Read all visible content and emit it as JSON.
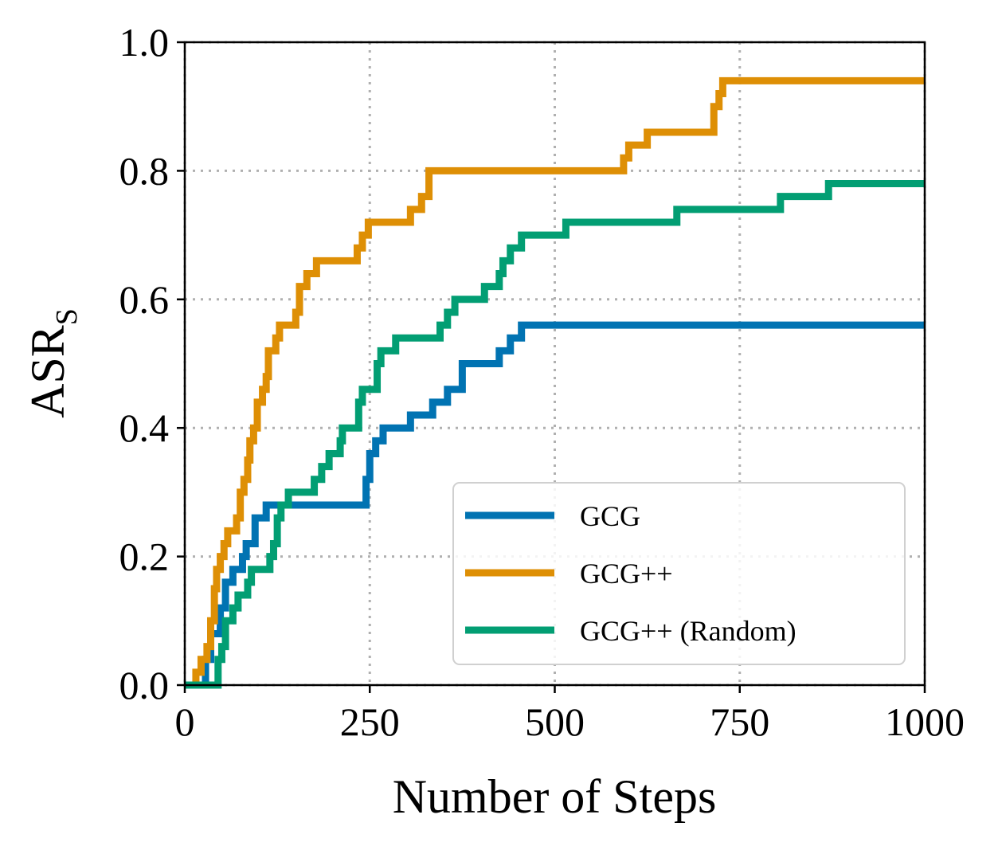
{
  "chart_data": {
    "type": "line",
    "step": true,
    "xlabel": "Number of Steps",
    "ylabel": "ASR",
    "ylabel_subscript": "S",
    "xlim": [
      0,
      1000
    ],
    "ylim": [
      0,
      1
    ],
    "x_ticks": [
      0,
      250,
      500,
      750,
      1000
    ],
    "x_tick_labels": [
      "0",
      "250",
      "500",
      "750",
      "1000"
    ],
    "y_ticks": [
      0,
      0.2,
      0.4,
      0.6,
      0.8,
      1.0
    ],
    "y_tick_labels": [
      "0.0",
      "0.2",
      "0.4",
      "0.6",
      "0.8",
      "1.0"
    ],
    "grid": true,
    "legend_position": "lower-right",
    "series": [
      {
        "name": "GCG",
        "color": "#0173b2",
        "points": [
          [
            0,
            0
          ],
          [
            25,
            0
          ],
          [
            28,
            0.04
          ],
          [
            35,
            0.08
          ],
          [
            48,
            0.12
          ],
          [
            55,
            0.16
          ],
          [
            65,
            0.18
          ],
          [
            78,
            0.2
          ],
          [
            83,
            0.22
          ],
          [
            95,
            0.26
          ],
          [
            110,
            0.28
          ],
          [
            240,
            0.28
          ],
          [
            245,
            0.32
          ],
          [
            250,
            0.36
          ],
          [
            258,
            0.38
          ],
          [
            268,
            0.4
          ],
          [
            305,
            0.42
          ],
          [
            335,
            0.44
          ],
          [
            355,
            0.46
          ],
          [
            375,
            0.5
          ],
          [
            425,
            0.52
          ],
          [
            440,
            0.54
          ],
          [
            455,
            0.56
          ],
          [
            1000,
            0.56
          ]
        ]
      },
      {
        "name": "GCG++",
        "color": "#de8f05",
        "points": [
          [
            0,
            0
          ],
          [
            10,
            0
          ],
          [
            15,
            0.02
          ],
          [
            22,
            0.04
          ],
          [
            30,
            0.06
          ],
          [
            35,
            0.1
          ],
          [
            40,
            0.15
          ],
          [
            43,
            0.18
          ],
          [
            48,
            0.2
          ],
          [
            53,
            0.22
          ],
          [
            58,
            0.24
          ],
          [
            70,
            0.26
          ],
          [
            75,
            0.3
          ],
          [
            80,
            0.32
          ],
          [
            85,
            0.35
          ],
          [
            88,
            0.38
          ],
          [
            93,
            0.4
          ],
          [
            98,
            0.44
          ],
          [
            105,
            0.46
          ],
          [
            110,
            0.48
          ],
          [
            113,
            0.52
          ],
          [
            123,
            0.54
          ],
          [
            128,
            0.56
          ],
          [
            150,
            0.58
          ],
          [
            155,
            0.62
          ],
          [
            165,
            0.64
          ],
          [
            178,
            0.66
          ],
          [
            233,
            0.68
          ],
          [
            240,
            0.7
          ],
          [
            248,
            0.72
          ],
          [
            305,
            0.74
          ],
          [
            320,
            0.76
          ],
          [
            330,
            0.8
          ],
          [
            593,
            0.82
          ],
          [
            600,
            0.84
          ],
          [
            625,
            0.86
          ],
          [
            715,
            0.9
          ],
          [
            722,
            0.92
          ],
          [
            727,
            0.94
          ],
          [
            1000,
            0.94
          ]
        ]
      },
      {
        "name": "GCG++ (Random)",
        "color": "#029e73",
        "points": [
          [
            0,
            0
          ],
          [
            40,
            0
          ],
          [
            45,
            0.04
          ],
          [
            50,
            0.06
          ],
          [
            55,
            0.1
          ],
          [
            65,
            0.12
          ],
          [
            72,
            0.14
          ],
          [
            85,
            0.16
          ],
          [
            90,
            0.18
          ],
          [
            115,
            0.2
          ],
          [
            120,
            0.22
          ],
          [
            125,
            0.26
          ],
          [
            130,
            0.28
          ],
          [
            140,
            0.3
          ],
          [
            175,
            0.32
          ],
          [
            185,
            0.34
          ],
          [
            195,
            0.36
          ],
          [
            210,
            0.38
          ],
          [
            213,
            0.4
          ],
          [
            235,
            0.44
          ],
          [
            240,
            0.46
          ],
          [
            260,
            0.5
          ],
          [
            265,
            0.52
          ],
          [
            285,
            0.54
          ],
          [
            345,
            0.56
          ],
          [
            355,
            0.58
          ],
          [
            365,
            0.6
          ],
          [
            405,
            0.62
          ],
          [
            425,
            0.64
          ],
          [
            430,
            0.66
          ],
          [
            440,
            0.68
          ],
          [
            455,
            0.7
          ],
          [
            515,
            0.72
          ],
          [
            665,
            0.74
          ],
          [
            805,
            0.76
          ],
          [
            870,
            0.78
          ],
          [
            1000,
            0.78
          ]
        ]
      }
    ]
  }
}
